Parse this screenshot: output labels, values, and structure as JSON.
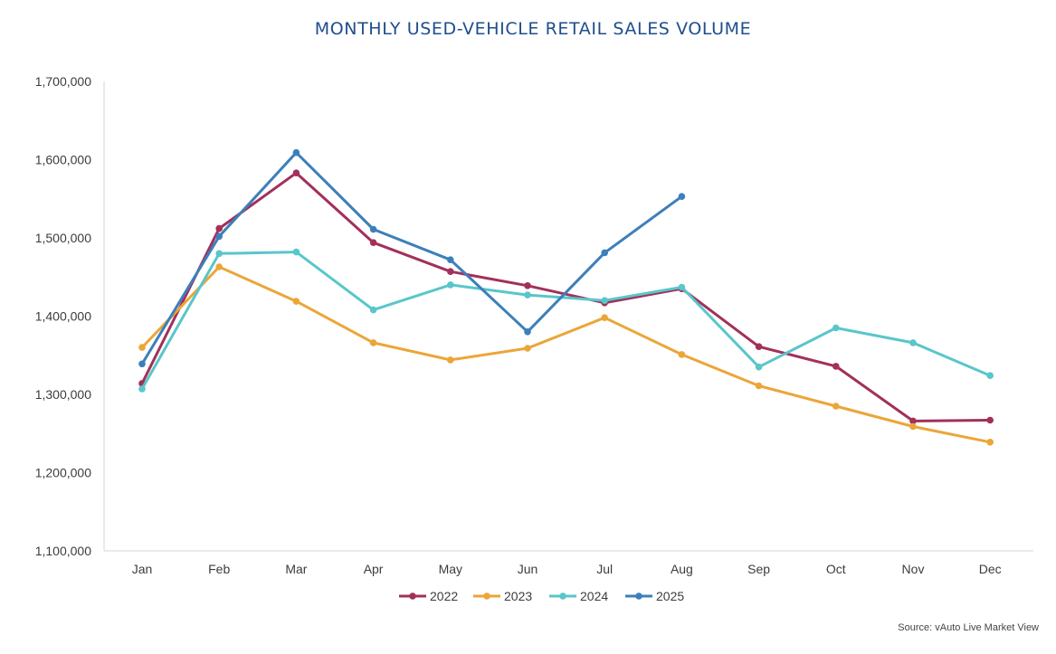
{
  "chart_data": {
    "type": "line",
    "title": "MONTHLY USED-VEHICLE RETAIL SALES VOLUME",
    "xlabel": "",
    "ylabel": "",
    "categories": [
      "Jan",
      "Feb",
      "Mar",
      "Apr",
      "May",
      "Jun",
      "Jul",
      "Aug",
      "Sep",
      "Oct",
      "Nov",
      "Dec"
    ],
    "ylim": [
      1100000,
      1700000
    ],
    "yticks": [
      1100000,
      1200000,
      1300000,
      1400000,
      1500000,
      1600000,
      1700000
    ],
    "ytick_labels": [
      "1,100,000",
      "1,200,000",
      "1,300,000",
      "1,400,000",
      "1,500,000",
      "1,600,000",
      "1,700,000"
    ],
    "grid": false,
    "legend_position": "bottom",
    "series": [
      {
        "name": "2022",
        "color": "#a3305a",
        "values": [
          1314000,
          1512000,
          1583000,
          1494000,
          1457000,
          1439000,
          1417000,
          1435000,
          1361000,
          1336000,
          1266000,
          1267000
        ]
      },
      {
        "name": "2023",
        "color": "#eba638",
        "values": [
          1360000,
          1463000,
          1419000,
          1366000,
          1344000,
          1359000,
          1398000,
          1351000,
          1311000,
          1285000,
          1259000,
          1239000
        ]
      },
      {
        "name": "2024",
        "color": "#59c6cb",
        "values": [
          1307000,
          1480000,
          1482000,
          1408000,
          1440000,
          1427000,
          1420000,
          1437000,
          1335000,
          1385000,
          1366000,
          1324000
        ]
      },
      {
        "name": "2025",
        "color": "#3d7fba",
        "values": [
          1339000,
          1502000,
          1609000,
          1511000,
          1472000,
          1380000,
          1481000,
          1553000,
          null,
          null,
          null,
          null
        ]
      }
    ]
  },
  "source": "Source: vAuto Live Market View"
}
